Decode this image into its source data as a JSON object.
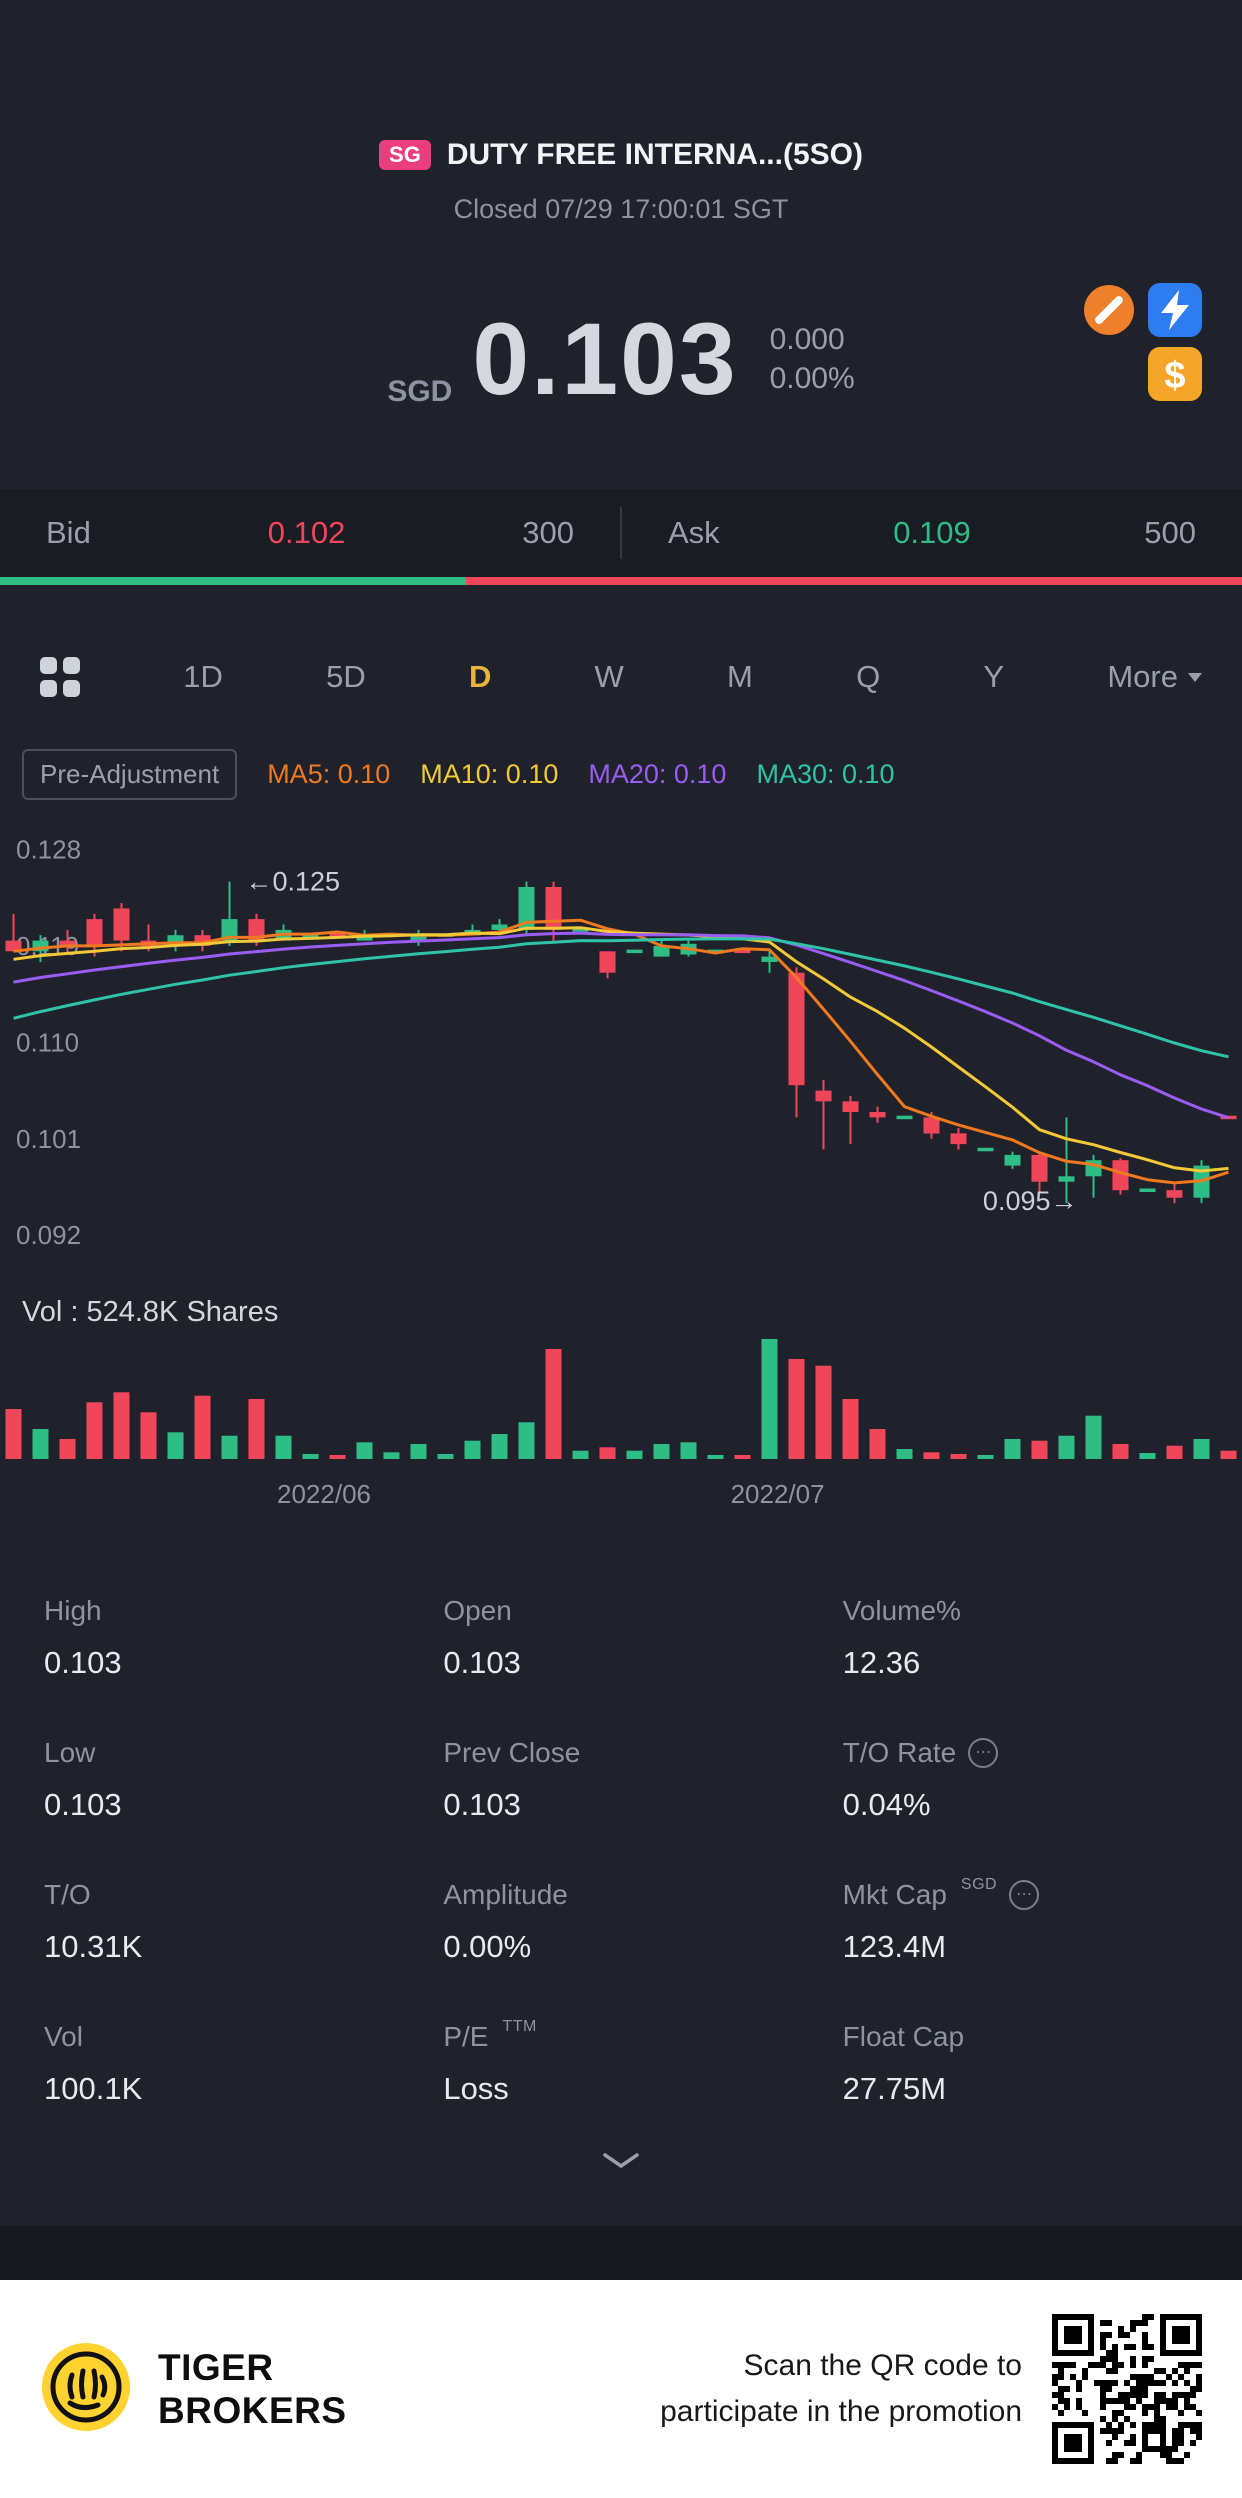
{
  "theme": {
    "red": "#f0465a",
    "green": "#2ebd85",
    "accent": "#e9b43c",
    "badge_pink": "#ea3e7e"
  },
  "header": {
    "market_badge": "SG",
    "title": "DUTY FREE INTERNA...(5SO)",
    "status": "Closed 07/29 17:00:01 SGT"
  },
  "price": {
    "currency": "SGD",
    "last": "0.103",
    "change": "0.000",
    "change_pct": "0.00%"
  },
  "quote": {
    "bid_label": "Bid",
    "bid_price": "0.102",
    "bid_size": "300",
    "ask_label": "Ask",
    "ask_price": "0.109",
    "ask_size": "500",
    "bid_ratio": 0.375
  },
  "toolbar": {
    "tabs": [
      "1D",
      "5D",
      "D",
      "W",
      "M",
      "Q",
      "Y"
    ],
    "selected": "D",
    "more_label": "More"
  },
  "indicators": {
    "pre_adjustment": "Pre-Adjustment",
    "ma": [
      {
        "text": "MA5: 0.10",
        "window": 5,
        "color": "#f0781e"
      },
      {
        "text": "MA10: 0.10",
        "window": 10,
        "color": "#f3c937"
      },
      {
        "text": "MA20: 0.10",
        "window": 20,
        "color": "#9a5cf5"
      },
      {
        "text": "MA30: 0.10",
        "window": 30,
        "color": "#2fc4a7"
      }
    ]
  },
  "chart_data": {
    "type": "candlestick",
    "title": "Daily price chart with MA5/MA10/MA20/MA30 and volume",
    "y_range": [
      0.0895,
      0.1315
    ],
    "y_ticks": [
      "0.128",
      "0.119",
      "0.110",
      "0.101",
      "0.092"
    ],
    "x_labels": [
      {
        "text": "2022/06",
        "index": 11.5
      },
      {
        "text": "2022/07",
        "index": 28.3
      }
    ],
    "annotations": [
      {
        "text": "0.125",
        "price": 0.125,
        "index": 8,
        "arrow": "left"
      },
      {
        "text": "0.095",
        "price": 0.0952,
        "index": 40,
        "arrow": "right"
      }
    ],
    "volume_label": "Vol : 524.8K Shares",
    "ma_seed": [
      0.1,
      0.101,
      0.102,
      0.103,
      0.104,
      0.105,
      0.106,
      0.107,
      0.108,
      0.109,
      0.11,
      0.111,
      0.112,
      0.112,
      0.113,
      0.113,
      0.114,
      0.114,
      0.115,
      0.115,
      0.116,
      0.116,
      0.117,
      0.117,
      0.117,
      0.118,
      0.118,
      0.118,
      0.119,
      0.119
    ],
    "candles": [
      [
        0.1195,
        0.122,
        0.1185,
        0.1185,
        150,
        "r"
      ],
      [
        0.1185,
        0.12,
        0.1175,
        0.1195,
        90,
        "g"
      ],
      [
        0.1195,
        0.1205,
        0.1185,
        0.119,
        60,
        "r"
      ],
      [
        0.1215,
        0.122,
        0.118,
        0.119,
        170,
        "r"
      ],
      [
        0.1225,
        0.123,
        0.1185,
        0.1195,
        200,
        "r"
      ],
      [
        0.1195,
        0.121,
        0.1185,
        0.119,
        140,
        "r"
      ],
      [
        0.119,
        0.1205,
        0.1185,
        0.12,
        80,
        "g"
      ],
      [
        0.12,
        0.1205,
        0.1185,
        0.119,
        190,
        "r"
      ],
      [
        0.1195,
        0.125,
        0.119,
        0.1215,
        70,
        "g"
      ],
      [
        0.1215,
        0.122,
        0.119,
        0.1195,
        180,
        "r"
      ],
      [
        0.1195,
        0.121,
        0.1195,
        0.1205,
        70,
        "g"
      ],
      [
        0.12,
        0.12,
        0.12,
        0.12,
        15,
        "g"
      ],
      [
        0.12,
        0.12,
        0.12,
        0.12,
        10,
        "r"
      ],
      [
        0.1195,
        0.1205,
        0.1195,
        0.12,
        50,
        "g"
      ],
      [
        0.12,
        0.12,
        0.12,
        0.12,
        20,
        "g"
      ],
      [
        0.1195,
        0.1205,
        0.119,
        0.12,
        45,
        "g"
      ],
      [
        0.12,
        0.12,
        0.12,
        0.12,
        15,
        "g"
      ],
      [
        0.12,
        0.121,
        0.12,
        0.1205,
        55,
        "g"
      ],
      [
        0.1205,
        0.1215,
        0.12,
        0.121,
        75,
        "g"
      ],
      [
        0.1205,
        0.125,
        0.12,
        0.1245,
        110,
        "g"
      ],
      [
        0.1245,
        0.125,
        0.1195,
        0.1205,
        330,
        "r"
      ],
      [
        0.1205,
        0.1205,
        0.1205,
        0.1205,
        25,
        "g"
      ],
      [
        0.1185,
        0.1185,
        0.116,
        0.1165,
        35,
        "r"
      ],
      [
        0.1185,
        0.1185,
        0.1185,
        0.1185,
        25,
        "g"
      ],
      [
        0.118,
        0.1195,
        0.118,
        0.119,
        45,
        "g"
      ],
      [
        0.1182,
        0.1195,
        0.118,
        0.1192,
        50,
        "g"
      ],
      [
        0.1185,
        0.1185,
        0.1185,
        0.1185,
        10,
        "g"
      ],
      [
        0.1185,
        0.1185,
        0.1185,
        0.1185,
        8,
        "r"
      ],
      [
        0.1175,
        0.1185,
        0.1165,
        0.118,
        360,
        "g"
      ],
      [
        0.1165,
        0.117,
        0.103,
        0.106,
        300,
        "r"
      ],
      [
        0.1055,
        0.1065,
        0.1,
        0.1045,
        280,
        "r"
      ],
      [
        0.1045,
        0.105,
        0.1005,
        0.1035,
        180,
        "r"
      ],
      [
        0.1035,
        0.104,
        0.1025,
        0.103,
        90,
        "r"
      ],
      [
        0.103,
        0.103,
        0.103,
        0.103,
        30,
        "g"
      ],
      [
        0.103,
        0.1035,
        0.101,
        0.1015,
        20,
        "r"
      ],
      [
        0.1015,
        0.102,
        0.1,
        0.1005,
        15,
        "r"
      ],
      [
        0.1,
        0.1,
        0.1,
        0.1,
        12,
        "g"
      ],
      [
        0.0985,
        0.0998,
        0.0982,
        0.0995,
        60,
        "g"
      ],
      [
        0.0995,
        0.0998,
        0.096,
        0.097,
        55,
        "r"
      ],
      [
        0.097,
        0.103,
        0.095,
        0.0975,
        70,
        "g"
      ],
      [
        0.0975,
        0.0995,
        0.0955,
        0.099,
        130,
        "g"
      ],
      [
        0.099,
        0.0992,
        0.0958,
        0.0962,
        45,
        "r"
      ],
      [
        0.0962,
        0.0962,
        0.0962,
        0.0962,
        18,
        "g"
      ],
      [
        0.0962,
        0.0968,
        0.095,
        0.0955,
        40,
        "r"
      ],
      [
        0.0955,
        0.099,
        0.095,
        0.0985,
        60,
        "g"
      ],
      [
        0.103,
        0.103,
        0.103,
        0.103,
        25,
        "r"
      ]
    ]
  },
  "stats": {
    "cells": [
      {
        "label": "High",
        "value": "0.103"
      },
      {
        "label": "Open",
        "value": "0.103"
      },
      {
        "label": "Volume%",
        "value": "12.36"
      },
      {
        "label": "Low",
        "value": "0.103"
      },
      {
        "label": "Prev Close",
        "value": "0.103"
      },
      {
        "label": "T/O Rate",
        "value": "0.04%",
        "info": true
      },
      {
        "label": "T/O",
        "value": "10.31K"
      },
      {
        "label": "Amplitude",
        "value": "0.00%"
      },
      {
        "label": "Mkt Cap",
        "value": "123.4M",
        "sup": "SGD",
        "info": true
      },
      {
        "label": "Vol",
        "value": "100.1K"
      },
      {
        "label": "P/E",
        "value": "Loss",
        "sup": "TTM"
      },
      {
        "label": "Float Cap",
        "value": "27.75M"
      }
    ]
  },
  "footer": {
    "brand_line1": "TIGER",
    "brand_line2": "BROKERS",
    "promo_line1": "Scan the QR code to",
    "promo_line2": "participate in the promotion"
  }
}
